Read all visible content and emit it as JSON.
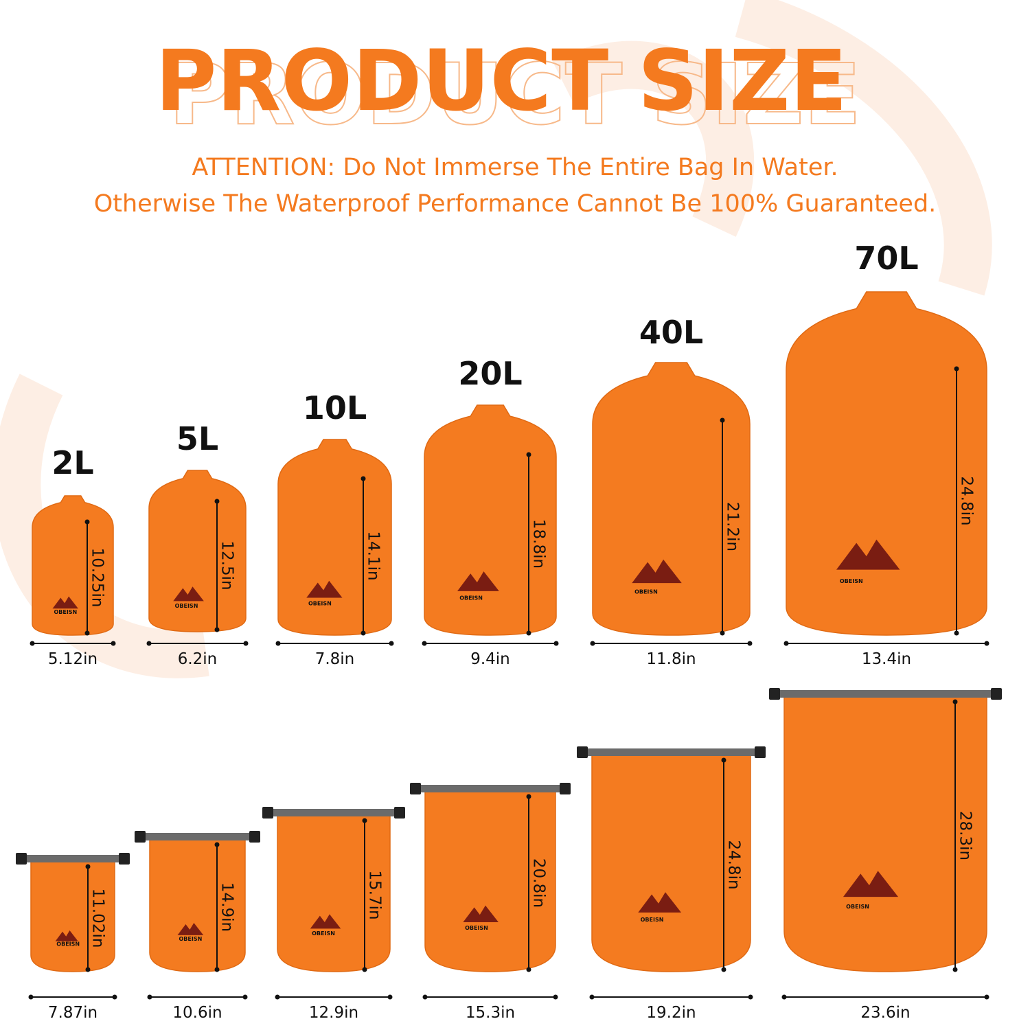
{
  "title": "PRODUCT SIZE",
  "attention": [
    "ATTENTION: Do Not Immerse The Entire Bag In Water.",
    "Otherwise The Waterproof Performance Cannot Be 100% Guaranteed."
  ],
  "brand": "OBEISN",
  "rolled": [
    {
      "capacity": "2L",
      "height": "10.25in",
      "width": "5.12in"
    },
    {
      "capacity": "5L",
      "height": "12.5in",
      "width": "6.2in"
    },
    {
      "capacity": "10L",
      "height": "14.1in",
      "width": "7.8in"
    },
    {
      "capacity": "20L",
      "height": "18.8in",
      "width": "9.4in"
    },
    {
      "capacity": "40L",
      "height": "21.2in",
      "width": "11.8in"
    },
    {
      "capacity": "70L",
      "height": "24.8in",
      "width": "13.4in"
    }
  ],
  "unrolled": [
    {
      "height": "11.02in",
      "width": "7.87in"
    },
    {
      "height": "14.9in",
      "width": "10.6in"
    },
    {
      "height": "15.7in",
      "width": "12.9in"
    },
    {
      "height": "20.8in",
      "width": "15.3in"
    },
    {
      "height": "24.8in",
      "width": "19.2in"
    },
    {
      "height": "28.3in",
      "width": "23.6in"
    }
  ]
}
